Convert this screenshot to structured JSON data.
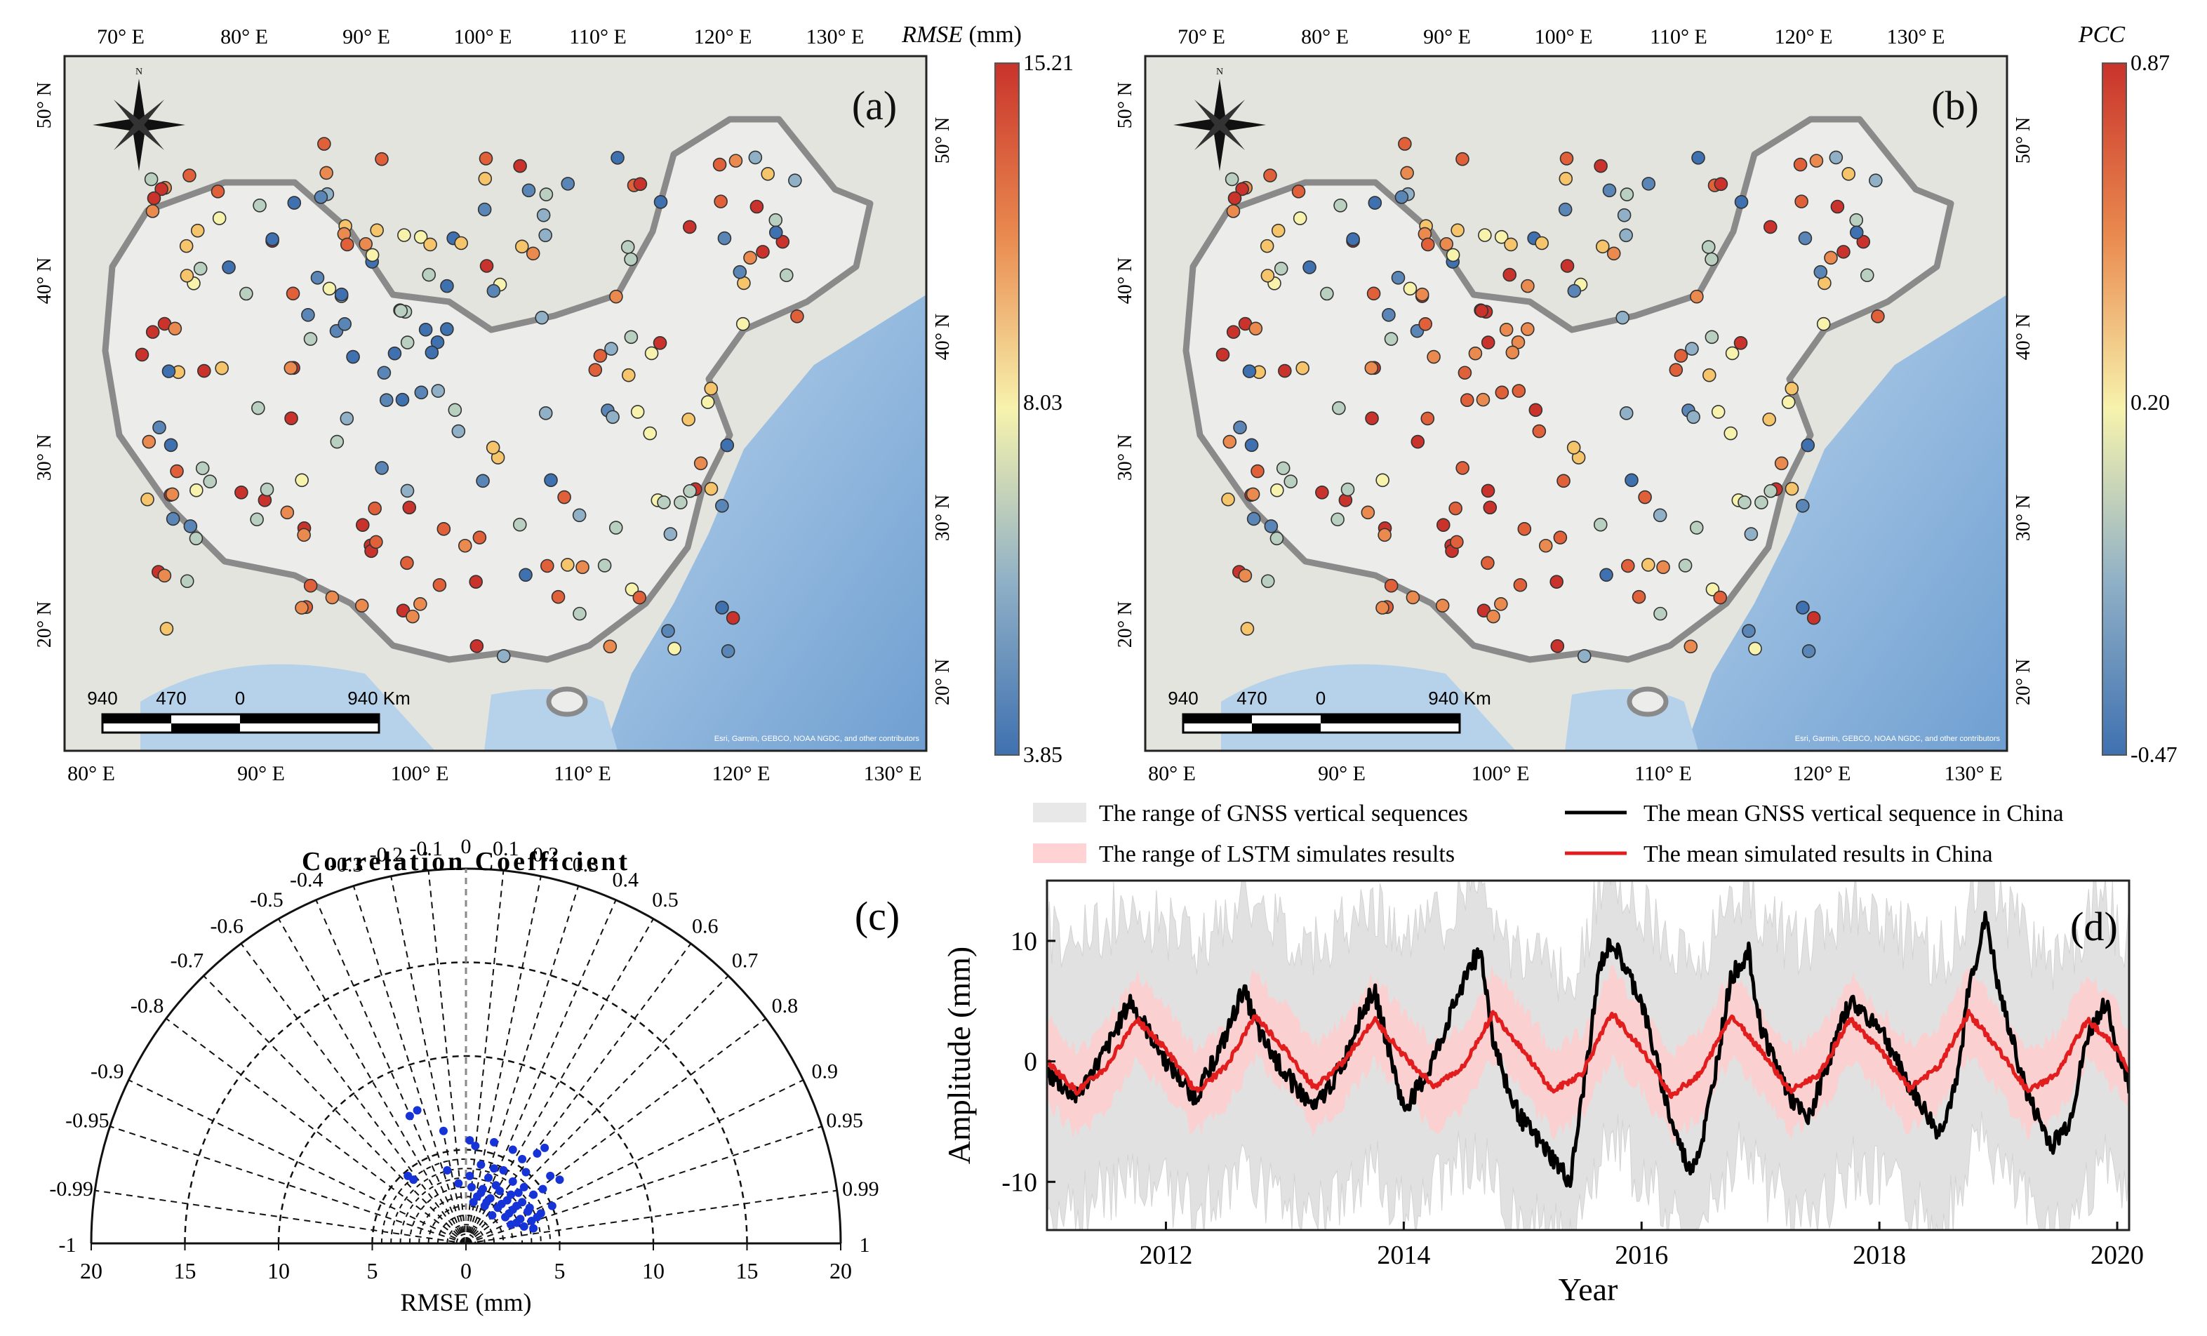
{
  "panel_a": {
    "label": "(a)",
    "top_ticks": [
      "70° E",
      "80° E",
      "90° E",
      "100° E",
      "110° E",
      "120° E",
      "130° E"
    ],
    "bottom_ticks": [
      "80° E",
      "90° E",
      "100° E",
      "110° E",
      "120° E",
      "130° E"
    ],
    "left_ticks": [
      "50° N",
      "40° N",
      "30° N",
      "20° N"
    ],
    "right_ticks": [
      "50° N",
      "40° N",
      "30° N",
      "20° N"
    ],
    "colorbar": {
      "title": "RMSE",
      "unit": " (mm)",
      "max": "15.21",
      "mid": "8.03",
      "min": "3.85"
    },
    "scale_labels": [
      "940",
      "470",
      "0",
      "940 Km"
    ],
    "attribution": "Esri, Garmin, GEBCO, NOAA NGDC, and other contributors"
  },
  "panel_b": {
    "label": "(b)",
    "top_ticks": [
      "70° E",
      "80° E",
      "90° E",
      "100° E",
      "110° E",
      "120° E",
      "130° E"
    ],
    "bottom_ticks": [
      "80° E",
      "90° E",
      "100° E",
      "110° E",
      "120° E",
      "130° E"
    ],
    "left_ticks": [
      "50° N",
      "40° N",
      "30° N",
      "20° N"
    ],
    "right_ticks": [
      "50° N",
      "40° N",
      "30° N",
      "20° N"
    ],
    "colorbar": {
      "title": "PCC",
      "max": "0.87",
      "mid": "0.20",
      "min": "-0.47"
    },
    "scale_labels": [
      "940",
      "470",
      "0",
      "940 Km"
    ],
    "attribution": "Esri, Garmin, GEBCO, NOAA NGDC, and other contributors"
  },
  "panel_c": {
    "label": "(c)",
    "title": "Correlation Coefficient",
    "xlabel": "RMSE (mm)"
  },
  "panel_d": {
    "label": "(d)",
    "legend": [
      "The range of GNSS vertical sequences",
      "The mean GNSS vertical sequence in China",
      "The range of LSTM simulates results",
      "The mean simulated results in China"
    ]
  },
  "colors": {
    "ocean": "#a9c9e6",
    "land": "#e3e4df",
    "china": "#ececea",
    "border": "#8a8a8a",
    "cbar_top": "#c9332b",
    "cbar_mid": "#f7f3ad",
    "cbar_bottom": "#3f71b0",
    "gnss_line": "#000000",
    "lstm_line": "#e11d1d",
    "gnss_band": "#dcdcdc",
    "lstm_band": "#ffc7c7",
    "taylor_points": "#1633d8"
  },
  "chart_data": [
    {
      "type": "scatter",
      "title": "Taylor diagram",
      "xlabel": "RMSE (mm)",
      "x_ticks": [
        20,
        15,
        10,
        5,
        0,
        5,
        10,
        15,
        20
      ],
      "xlim": [
        -20,
        20
      ],
      "radius_rings": [
        5,
        10,
        15,
        20
      ],
      "correlation_ticks": [
        -1,
        -0.99,
        -0.95,
        -0.9,
        -0.8,
        -0.7,
        -0.6,
        -0.5,
        -0.4,
        -0.3,
        -0.2,
        -0.1,
        0,
        0.1,
        0.2,
        0.3,
        0.4,
        0.5,
        0.6,
        0.7,
        0.8,
        0.9,
        0.95,
        0.99,
        1
      ],
      "points": [
        [
          -2.6,
          7.1
        ],
        [
          -3.0,
          6.8
        ],
        [
          -1.2,
          6.0
        ],
        [
          0.2,
          5.5
        ],
        [
          0.5,
          5.2
        ],
        [
          1.5,
          5.4
        ],
        [
          2.5,
          5.0
        ],
        [
          4.2,
          5.1
        ],
        [
          3.8,
          4.8
        ],
        [
          3.0,
          4.5
        ],
        [
          -3.1,
          3.6
        ],
        [
          -2.8,
          3.4
        ],
        [
          -1.0,
          3.9
        ],
        [
          0.8,
          4.2
        ],
        [
          1.5,
          4.0
        ],
        [
          2.0,
          3.9
        ],
        [
          3.2,
          3.8
        ],
        [
          4.5,
          3.6
        ],
        [
          1.2,
          3.5
        ],
        [
          2.5,
          3.3
        ],
        [
          0.3,
          3.0
        ],
        [
          0.9,
          2.9
        ],
        [
          1.8,
          2.8
        ],
        [
          2.8,
          2.7
        ],
        [
          3.6,
          2.6
        ],
        [
          0.6,
          2.5
        ],
        [
          1.3,
          2.4
        ],
        [
          2.2,
          2.3
        ],
        [
          3.0,
          2.2
        ],
        [
          1.0,
          2.0
        ],
        [
          1.7,
          1.9
        ],
        [
          2.5,
          1.8
        ],
        [
          3.3,
          1.7
        ],
        [
          4.0,
          1.6
        ],
        [
          1.4,
          1.5
        ],
        [
          2.1,
          1.4
        ],
        [
          2.9,
          1.3
        ],
        [
          3.5,
          1.2
        ],
        [
          2.4,
          1.0
        ],
        [
          3.1,
          0.9
        ],
        [
          3.6,
          0.8
        ],
        [
          0.8,
          2.7
        ],
        [
          1.1,
          2.2
        ],
        [
          1.9,
          2.1
        ],
        [
          2.7,
          2.0
        ],
        [
          3.4,
          1.9
        ],
        [
          2.3,
          1.6
        ],
        [
          2.7,
          1.1
        ],
        [
          3.8,
          1.4
        ],
        [
          4.6,
          2.0
        ],
        [
          0.4,
          2.2
        ],
        [
          1.6,
          3.1
        ],
        [
          2.4,
          2.6
        ],
        [
          3.1,
          3.0
        ],
        [
          4.1,
          2.9
        ],
        [
          0.2,
          3.6
        ],
        [
          -0.4,
          3.2
        ],
        [
          5.0,
          3.4
        ]
      ]
    },
    {
      "type": "line",
      "xlabel": "Year",
      "ylabel": "Amplitude (mm)",
      "xlim": [
        2011.0,
        2020.1
      ],
      "ylim": [
        -14,
        15
      ],
      "x_ticks": [
        2012,
        2014,
        2016,
        2018,
        2020
      ],
      "y_ticks": [
        -10,
        0,
        10
      ],
      "series": [
        {
          "name": "The mean GNSS vertical sequence in China",
          "x": [
            2011.0,
            2011.25,
            2011.5,
            2011.7,
            2012.0,
            2012.25,
            2012.5,
            2012.65,
            2012.8,
            2013.0,
            2013.25,
            2013.5,
            2013.6,
            2013.75,
            2013.9,
            2014.0,
            2014.2,
            2014.4,
            2014.55,
            2014.65,
            2014.75,
            2014.9,
            2015.0,
            2015.25,
            2015.4,
            2015.5,
            2015.65,
            2015.75,
            2016.0,
            2016.25,
            2016.4,
            2016.5,
            2016.6,
            2016.75,
            2016.9,
            2017.0,
            2017.25,
            2017.4,
            2017.5,
            2017.75,
            2018.0,
            2018.25,
            2018.5,
            2018.65,
            2018.75,
            2018.9,
            2019.0,
            2019.25,
            2019.45,
            2019.6,
            2019.75,
            2019.9,
            2020.0,
            2020.1
          ],
          "y": [
            -1,
            -3,
            1,
            5,
            0,
            -3,
            2,
            6,
            2,
            -1,
            -4,
            0,
            3,
            6,
            0,
            -4,
            -1,
            4,
            8,
            9,
            2,
            -3,
            -5,
            -8,
            -10,
            -3,
            8,
            10,
            5,
            -5,
            -9,
            -7,
            -2,
            7,
            9,
            3,
            -3,
            -5,
            -2,
            5,
            3,
            -2,
            -6,
            -2,
            6,
            12,
            6,
            -3,
            -7,
            -5,
            2,
            5,
            1,
            -2
          ]
        },
        {
          "name": "The mean simulated results in China",
          "x": [
            2011.0,
            2011.25,
            2011.5,
            2011.75,
            2012.0,
            2012.25,
            2012.5,
            2012.75,
            2013.0,
            2013.25,
            2013.5,
            2013.75,
            2014.0,
            2014.25,
            2014.5,
            2014.75,
            2015.0,
            2015.25,
            2015.5,
            2015.75,
            2016.0,
            2016.25,
            2016.5,
            2016.75,
            2017.0,
            2017.25,
            2017.5,
            2017.75,
            2018.0,
            2018.25,
            2018.5,
            2018.75,
            2019.0,
            2019.25,
            2019.5,
            2019.75,
            2020.0,
            2020.1
          ],
          "y": [
            0,
            -2.5,
            -0.5,
            3.5,
            1,
            -2.5,
            -0.5,
            3.8,
            1,
            -2.2,
            0,
            3.5,
            0.5,
            -2,
            -0.5,
            4,
            1,
            -2.5,
            -1,
            4,
            1,
            -2.8,
            -1,
            3.8,
            1,
            -2.5,
            -1,
            3.5,
            1,
            -2.2,
            -0.5,
            4,
            1,
            -2.5,
            -1,
            3.5,
            1,
            -1
          ]
        }
      ],
      "bands": [
        {
          "name": "The range of GNSS vertical sequences",
          "half_width": 11
        },
        {
          "name": "The range of LSTM simulates results",
          "half_width": 3.5
        }
      ]
    }
  ]
}
